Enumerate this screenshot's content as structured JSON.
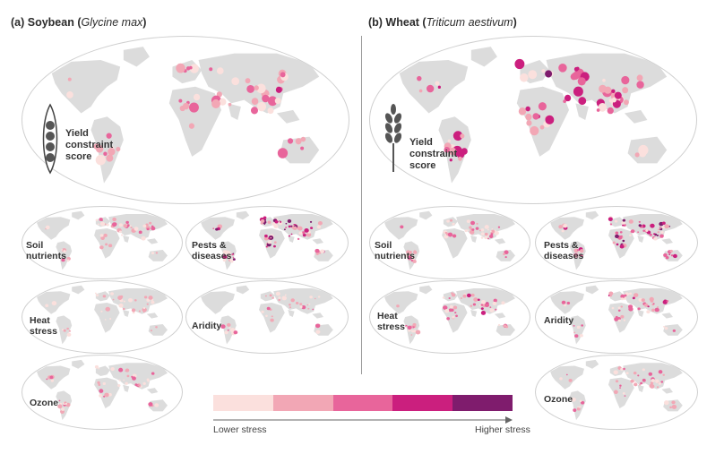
{
  "panels": {
    "soybean": {
      "prefix": "(a) Soybean (",
      "sci": "Glycine max",
      "suffix": ")"
    },
    "wheat": {
      "prefix": "(b) Wheat (",
      "sci": "Triticum aestivum",
      "suffix": ")"
    }
  },
  "yield_label": {
    "line1": "Yield",
    "line2": "constraint",
    "line3": "score"
  },
  "maps": {
    "soy_soil": {
      "line1": "Soil",
      "line2": "nutrients"
    },
    "soy_pests": {
      "line1": "Pests &",
      "line2": "diseases"
    },
    "soy_heat": {
      "line1": "Heat",
      "line2": "stress"
    },
    "soy_aridity": {
      "line1": "Aridity",
      "line2": ""
    },
    "soy_ozone": {
      "line1": "Ozone",
      "line2": ""
    },
    "wheat_soil": {
      "line1": "Soil",
      "line2": "nutrients"
    },
    "wheat_pests": {
      "line1": "Pests &",
      "line2": "diseases"
    },
    "wheat_heat": {
      "line1": "Heat",
      "line2": "stress"
    },
    "wheat_aridity": {
      "line1": "Aridity",
      "line2": ""
    },
    "wheat_ozone": {
      "line1": "Ozone",
      "line2": ""
    }
  },
  "legend": {
    "low_label": "Lower stress",
    "high_label": "Higher stress",
    "colors": [
      "#fbe0dd",
      "#f2a7b5",
      "#e8659b",
      "#cb1f7e",
      "#7f1c6d"
    ]
  }
}
